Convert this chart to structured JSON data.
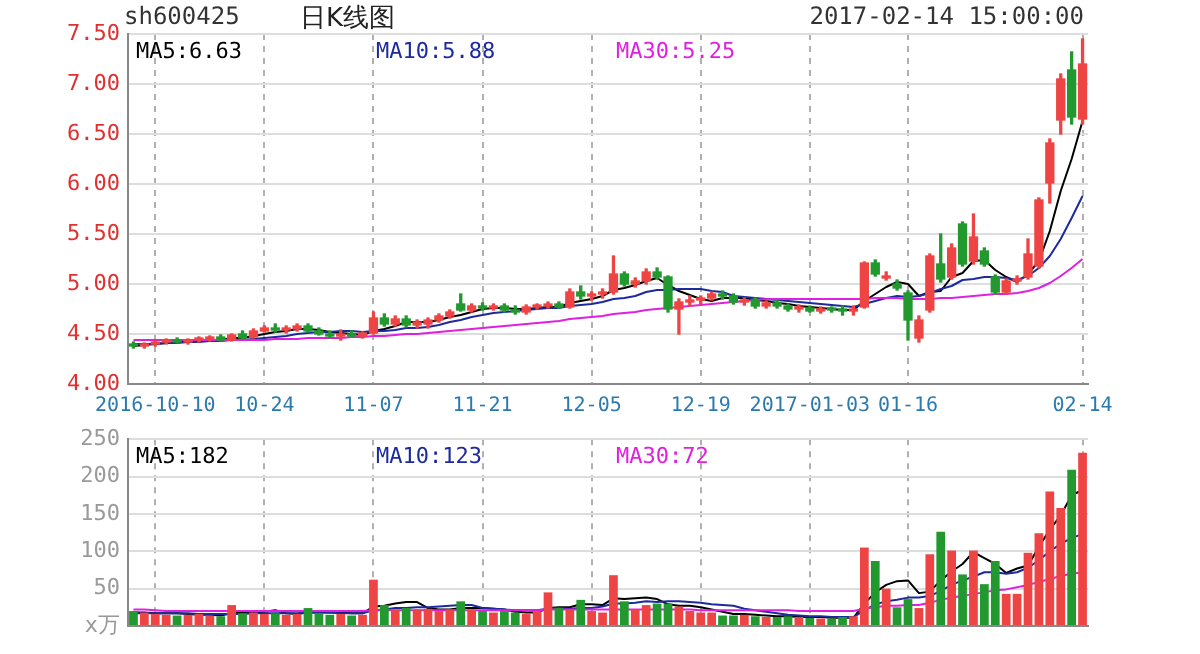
{
  "chart_data": [
    {
      "type": "candlestick",
      "title": "日K线图",
      "annotations": [
        "sh600425",
        "2017-02-14 15:00:00"
      ],
      "categories": [
        null,
        null,
        "2016-10-10",
        null,
        null,
        null,
        null,
        null,
        null,
        null,
        null,
        null,
        "10-24",
        null,
        null,
        null,
        null,
        null,
        null,
        null,
        null,
        null,
        "11-07",
        null,
        null,
        null,
        null,
        null,
        null,
        null,
        null,
        null,
        "11-21",
        null,
        null,
        null,
        null,
        null,
        null,
        null,
        null,
        null,
        "12-05",
        null,
        null,
        null,
        null,
        null,
        null,
        null,
        null,
        null,
        "12-19",
        null,
        null,
        null,
        null,
        null,
        null,
        null,
        null,
        null,
        "2017-01-03",
        null,
        null,
        null,
        null,
        null,
        null,
        null,
        null,
        "01-16",
        null,
        null,
        null,
        null,
        null,
        null,
        null,
        null,
        null,
        null,
        null,
        null,
        null,
        null,
        null,
        "02-14"
      ],
      "ohlc": [
        [
          4.4,
          4.42,
          4.36,
          4.38
        ],
        [
          4.38,
          4.41,
          4.36,
          4.4
        ],
        [
          4.4,
          4.43,
          4.38,
          4.42
        ],
        [
          4.42,
          4.45,
          4.4,
          4.44
        ],
        [
          4.44,
          4.46,
          4.41,
          4.42
        ],
        [
          4.42,
          4.45,
          4.4,
          4.44
        ],
        [
          4.44,
          4.47,
          4.42,
          4.45
        ],
        [
          4.45,
          4.48,
          4.43,
          4.47
        ],
        [
          4.47,
          4.49,
          4.43,
          4.44
        ],
        [
          4.44,
          4.5,
          4.43,
          4.49
        ],
        [
          4.5,
          4.53,
          4.45,
          4.46
        ],
        [
          4.47,
          4.55,
          4.46,
          4.53
        ],
        [
          4.53,
          4.58,
          4.52,
          4.56
        ],
        [
          4.56,
          4.6,
          4.52,
          4.54
        ],
        [
          4.54,
          4.58,
          4.51,
          4.55
        ],
        [
          4.55,
          4.6,
          4.53,
          4.58
        ],
        [
          4.58,
          4.6,
          4.52,
          4.53
        ],
        [
          4.53,
          4.56,
          4.49,
          4.5
        ],
        [
          4.5,
          4.53,
          4.46,
          4.48
        ],
        [
          4.48,
          4.54,
          4.44,
          4.5
        ],
        [
          4.5,
          4.53,
          4.47,
          4.48
        ],
        [
          4.48,
          4.52,
          4.46,
          4.51
        ],
        [
          4.51,
          4.72,
          4.5,
          4.66
        ],
        [
          4.66,
          4.7,
          4.58,
          4.6
        ],
        [
          4.6,
          4.68,
          4.58,
          4.65
        ],
        [
          4.65,
          4.68,
          4.57,
          4.59
        ],
        [
          4.59,
          4.64,
          4.56,
          4.62
        ],
        [
          4.6,
          4.66,
          4.56,
          4.64
        ],
        [
          4.64,
          4.7,
          4.62,
          4.68
        ],
        [
          4.68,
          4.74,
          4.66,
          4.72
        ],
        [
          4.8,
          4.9,
          4.73,
          4.74
        ],
        [
          4.74,
          4.8,
          4.72,
          4.78
        ],
        [
          4.78,
          4.81,
          4.74,
          4.76
        ],
        [
          4.76,
          4.8,
          4.74,
          4.78
        ],
        [
          4.78,
          4.8,
          4.72,
          4.74
        ],
        [
          4.74,
          4.78,
          4.7,
          4.72
        ],
        [
          4.72,
          4.79,
          4.7,
          4.77
        ],
        [
          4.77,
          4.8,
          4.75,
          4.78
        ],
        [
          4.78,
          4.82,
          4.76,
          4.8
        ],
        [
          4.8,
          4.82,
          4.76,
          4.77
        ],
        [
          4.77,
          4.95,
          4.76,
          4.92
        ],
        [
          4.92,
          4.98,
          4.85,
          4.88
        ],
        [
          4.88,
          4.92,
          4.84,
          4.9
        ],
        [
          4.9,
          4.95,
          4.86,
          4.92
        ],
        [
          4.92,
          5.28,
          4.9,
          5.1
        ],
        [
          5.1,
          5.12,
          4.98,
          5.0
        ],
        [
          5.0,
          5.06,
          4.97,
          5.03
        ],
        [
          5.03,
          5.15,
          5.0,
          5.12
        ],
        [
          5.12,
          5.16,
          5.05,
          5.07
        ],
        [
          5.07,
          5.08,
          4.72,
          4.75
        ],
        [
          4.75,
          4.85,
          4.5,
          4.82
        ],
        [
          4.82,
          4.88,
          4.78,
          4.84
        ],
        [
          4.84,
          4.88,
          4.8,
          4.86
        ],
        [
          4.86,
          4.92,
          4.84,
          4.9
        ],
        [
          4.9,
          4.93,
          4.85,
          4.88
        ],
        [
          4.88,
          4.9,
          4.8,
          4.82
        ],
        [
          4.82,
          4.86,
          4.79,
          4.84
        ],
        [
          4.84,
          4.86,
          4.76,
          4.78
        ],
        [
          4.78,
          4.83,
          4.76,
          4.81
        ],
        [
          4.81,
          4.84,
          4.76,
          4.78
        ],
        [
          4.78,
          4.8,
          4.73,
          4.75
        ],
        [
          4.75,
          4.79,
          4.72,
          4.76
        ],
        [
          4.76,
          4.78,
          4.72,
          4.73
        ],
        [
          4.73,
          4.77,
          4.71,
          4.75
        ],
        [
          4.75,
          4.77,
          4.72,
          4.74
        ],
        [
          4.74,
          4.78,
          4.69,
          4.73
        ],
        [
          4.73,
          4.78,
          4.69,
          4.74
        ],
        [
          4.77,
          5.22,
          4.76,
          5.21
        ],
        [
          5.21,
          5.24,
          5.08,
          5.1
        ],
        [
          5.06,
          5.12,
          5.04,
          5.08
        ],
        [
          5.0,
          5.04,
          4.94,
          4.96
        ],
        [
          4.91,
          4.93,
          4.44,
          4.64
        ],
        [
          4.46,
          4.68,
          4.42,
          4.64
        ],
        [
          4.74,
          5.3,
          4.72,
          5.28
        ],
        [
          5.2,
          5.5,
          5.02,
          5.05
        ],
        [
          5.07,
          5.4,
          5.05,
          5.36
        ],
        [
          5.6,
          5.62,
          5.18,
          5.2
        ],
        [
          5.23,
          5.7,
          5.2,
          5.47
        ],
        [
          5.33,
          5.36,
          5.18,
          5.2
        ],
        [
          5.07,
          5.09,
          4.9,
          4.92
        ],
        [
          4.92,
          5.05,
          4.9,
          5.03
        ],
        [
          5.03,
          5.08,
          5.0,
          5.05
        ],
        [
          5.07,
          5.45,
          5.05,
          5.3
        ],
        [
          5.18,
          5.86,
          5.16,
          5.84
        ],
        [
          6.01,
          6.45,
          5.81,
          6.41
        ],
        [
          6.64,
          7.1,
          6.5,
          7.05
        ],
        [
          7.14,
          7.32,
          6.6,
          6.67
        ],
        [
          6.65,
          7.45,
          6.6,
          7.2
        ]
      ],
      "series": [
        {
          "type": "line",
          "name": "MA5:6.63",
          "color": "#000000",
          "values": [
            4.38,
            4.39,
            4.4,
            4.41,
            4.42,
            4.42,
            4.43,
            4.44,
            4.44,
            4.46,
            4.46,
            4.48,
            4.5,
            4.52,
            4.53,
            4.55,
            4.55,
            4.54,
            4.52,
            4.51,
            4.5,
            4.49,
            4.53,
            4.55,
            4.58,
            4.62,
            4.62,
            4.62,
            4.64,
            4.67,
            4.69,
            4.72,
            4.75,
            4.76,
            4.76,
            4.75,
            4.75,
            4.76,
            4.77,
            4.77,
            4.81,
            4.83,
            4.85,
            4.88,
            4.94,
            4.96,
            4.99,
            5.03,
            5.06,
            4.99,
            4.93,
            4.89,
            4.85,
            4.83,
            4.86,
            4.86,
            4.86,
            4.84,
            4.83,
            4.81,
            4.8,
            4.78,
            4.77,
            4.76,
            4.75,
            4.74,
            4.74,
            4.83,
            4.9,
            4.97,
            5.02,
            5.0,
            4.88,
            4.92,
            4.93,
            5.07,
            5.11,
            5.23,
            5.24,
            5.14,
            5.07,
            5.02,
            5.1,
            5.23,
            5.53,
            5.93,
            6.25,
            6.63
          ]
        },
        {
          "type": "line",
          "name": "MA10:5.88",
          "color": "#1c2a9c",
          "values": [
            4.4,
            4.4,
            4.4,
            4.41,
            4.41,
            4.42,
            4.42,
            4.43,
            4.43,
            4.44,
            4.44,
            4.45,
            4.46,
            4.47,
            4.48,
            4.5,
            4.51,
            4.52,
            4.52,
            4.53,
            4.53,
            4.52,
            4.53,
            4.53,
            4.54,
            4.56,
            4.56,
            4.57,
            4.59,
            4.62,
            4.64,
            4.67,
            4.69,
            4.71,
            4.72,
            4.73,
            4.74,
            4.75,
            4.76,
            4.76,
            4.78,
            4.79,
            4.8,
            4.82,
            4.85,
            4.86,
            4.88,
            4.92,
            4.94,
            4.94,
            4.95,
            4.95,
            4.95,
            4.93,
            4.92,
            4.88,
            4.87,
            4.86,
            4.85,
            4.84,
            4.83,
            4.82,
            4.81,
            4.8,
            4.79,
            4.78,
            4.77,
            4.8,
            4.83,
            4.86,
            4.88,
            4.87,
            4.88,
            4.91,
            4.95,
            4.98,
            5.04,
            5.05,
            5.07,
            5.07,
            5.06,
            5.04,
            5.08,
            5.16,
            5.28,
            5.45,
            5.66,
            5.88
          ]
        },
        {
          "type": "line",
          "name": "MA30:5.25",
          "color": "#e020e0",
          "values": [
            4.44,
            4.44,
            4.44,
            4.44,
            4.44,
            4.44,
            4.44,
            4.44,
            4.44,
            4.44,
            4.44,
            4.44,
            4.44,
            4.45,
            4.45,
            4.45,
            4.46,
            4.46,
            4.46,
            4.46,
            4.47,
            4.47,
            4.48,
            4.48,
            4.49,
            4.5,
            4.5,
            4.51,
            4.52,
            4.53,
            4.54,
            4.55,
            4.56,
            4.57,
            4.58,
            4.59,
            4.6,
            4.61,
            4.62,
            4.63,
            4.65,
            4.66,
            4.67,
            4.68,
            4.7,
            4.71,
            4.72,
            4.74,
            4.75,
            4.76,
            4.77,
            4.78,
            4.79,
            4.8,
            4.81,
            4.82,
            4.83,
            4.84,
            4.85,
            4.85,
            4.85,
            4.85,
            4.85,
            4.85,
            4.85,
            4.85,
            4.85,
            4.85,
            4.86,
            4.86,
            4.86,
            4.85,
            4.85,
            4.85,
            4.86,
            4.86,
            4.87,
            4.88,
            4.89,
            4.9,
            4.9,
            4.91,
            4.93,
            4.96,
            5.01,
            5.08,
            5.16,
            5.25
          ]
        }
      ],
      "ylim": [
        4,
        7.5
      ],
      "yticks": [
        {
          "value": 4,
          "label": "4.00"
        },
        {
          "value": 4.5,
          "label": "4.50"
        },
        {
          "value": 5,
          "label": "5.00"
        },
        {
          "value": 5.5,
          "label": "5.50"
        },
        {
          "value": 6,
          "label": "6.00"
        },
        {
          "value": 6.5,
          "label": "6.50"
        },
        {
          "value": 7,
          "label": "7.00"
        },
        {
          "value": 7.5,
          "label": "7.50"
        }
      ],
      "grid": true,
      "legend": "top left"
    },
    {
      "type": "bar",
      "tick_labels": "y",
      "categories": [
        null,
        null,
        null,
        null,
        null,
        null,
        null,
        null,
        null,
        null,
        null,
        null,
        null,
        null,
        null,
        null,
        null,
        null,
        null,
        null,
        null,
        null,
        null,
        null,
        null,
        null,
        null,
        null,
        null,
        null,
        null,
        null,
        null,
        null,
        null,
        null,
        null,
        null,
        null,
        null,
        null,
        null,
        null,
        null,
        null,
        null,
        null,
        null,
        null,
        null,
        null,
        null,
        null,
        null,
        null,
        null,
        null,
        null,
        null,
        null,
        null,
        null,
        null,
        null,
        null,
        null,
        null,
        null,
        null,
        null,
        null,
        null,
        null,
        null,
        null,
        null,
        null,
        null,
        null,
        null,
        null,
        null,
        null,
        null,
        null,
        null,
        null,
        null
      ],
      "series": [
        {
          "type": "bar",
          "values": [
            20,
            18,
            16,
            15,
            14,
            15,
            16,
            14,
            13,
            28,
            17,
            18,
            16,
            17,
            15,
            16,
            24,
            17,
            15,
            16,
            14,
            15,
            62,
            28,
            22,
            24,
            22,
            23,
            20,
            22,
            33,
            22,
            20,
            18,
            20,
            18,
            16,
            20,
            45,
            24,
            22,
            35,
            20,
            18,
            68,
            33,
            22,
            28,
            30,
            30,
            26,
            20,
            18,
            18,
            14,
            14,
            15,
            13,
            12,
            12,
            13,
            12,
            11,
            10,
            10,
            12,
            13,
            105,
            87,
            50,
            25,
            36,
            24,
            96,
            126,
            101,
            69,
            101,
            56,
            87,
            43,
            43,
            98,
            124,
            180,
            158,
            209,
            232
          ],
          "colors": [
            "#22992e",
            "#ee4444",
            "#ee4444",
            "#ee4444",
            "#22992e",
            "#ee4444",
            "#ee4444",
            "#ee4444",
            "#22992e",
            "#ee4444",
            "#22992e",
            "#ee4444",
            "#ee4444",
            "#22992e",
            "#ee4444",
            "#ee4444",
            "#22992e",
            "#22992e",
            "#22992e",
            "#ee4444",
            "#22992e",
            "#ee4444",
            "#ee4444",
            "#22992e",
            "#ee4444",
            "#22992e",
            "#ee4444",
            "#ee4444",
            "#ee4444",
            "#ee4444",
            "#22992e",
            "#ee4444",
            "#22992e",
            "#ee4444",
            "#22992e",
            "#22992e",
            "#ee4444",
            "#ee4444",
            "#ee4444",
            "#22992e",
            "#ee4444",
            "#22992e",
            "#ee4444",
            "#ee4444",
            "#ee4444",
            "#22992e",
            "#ee4444",
            "#ee4444",
            "#22992e",
            "#22992e",
            "#ee4444",
            "#ee4444",
            "#ee4444",
            "#ee4444",
            "#22992e",
            "#22992e",
            "#ee4444",
            "#22992e",
            "#ee4444",
            "#22992e",
            "#22992e",
            "#ee4444",
            "#22992e",
            "#ee4444",
            "#22992e",
            "#22992e",
            "#ee4444",
            "#ee4444",
            "#22992e",
            "#ee4444",
            "#22992e",
            "#22992e",
            "#ee4444",
            "#ee4444",
            "#22992e",
            "#ee4444",
            "#22992e",
            "#ee4444",
            "#22992e",
            "#22992e",
            "#ee4444",
            "#ee4444",
            "#ee4444",
            "#ee4444",
            "#ee4444",
            "#ee4444",
            "#22992e",
            "#ee4444"
          ]
        },
        {
          "type": "line",
          "name": "MA5:182",
          "color": "#000000",
          "values": [
            18,
            18,
            17,
            17,
            17,
            16,
            15,
            15,
            14,
            17,
            18,
            18,
            19,
            21,
            17,
            16,
            18,
            18,
            18,
            18,
            17,
            17,
            26,
            27,
            30,
            32,
            32,
            24,
            22,
            22,
            24,
            24,
            24,
            23,
            22,
            19,
            18,
            18,
            24,
            25,
            25,
            29,
            29,
            28,
            37,
            36,
            37,
            38,
            36,
            29,
            27,
            27,
            25,
            22,
            19,
            16,
            16,
            15,
            14,
            13,
            13,
            12,
            12,
            12,
            11,
            11,
            11,
            30,
            45,
            55,
            60,
            61,
            44,
            46,
            61,
            73,
            83,
            99,
            91,
            83,
            71,
            77,
            81,
            106,
            129,
            148,
            175,
            182
          ]
        },
        {
          "type": "line",
          "name": "MA10:123",
          "color": "#1c2a9c",
          "values": [
            17,
            17,
            17,
            17,
            17,
            17,
            16,
            16,
            16,
            16,
            16,
            17,
            17,
            17,
            17,
            17,
            18,
            18,
            18,
            17,
            17,
            17,
            21,
            22,
            24,
            24,
            25,
            25,
            26,
            27,
            28,
            28,
            24,
            23,
            22,
            21,
            21,
            21,
            23,
            24,
            23,
            24,
            24,
            26,
            30,
            30,
            31,
            33,
            32,
            33,
            33,
            32,
            31,
            29,
            28,
            27,
            23,
            21,
            19,
            17,
            15,
            14,
            13,
            13,
            12,
            12,
            12,
            21,
            29,
            33,
            35,
            38,
            38,
            40,
            47,
            55,
            61,
            66,
            72,
            72,
            70,
            72,
            78,
            88,
            100,
            110,
            118,
            123
          ]
        },
        {
          "type": "line",
          "name": "MA30:72",
          "color": "#e020e0",
          "values": [
            22,
            22,
            21,
            20,
            20,
            20,
            20,
            20,
            20,
            20,
            20,
            20,
            20,
            20,
            20,
            20,
            20,
            20,
            20,
            20,
            20,
            20,
            21,
            21,
            21,
            21,
            21,
            21,
            21,
            21,
            21,
            21,
            21,
            21,
            21,
            21,
            21,
            21,
            22,
            22,
            22,
            22,
            22,
            22,
            22,
            22,
            22,
            22,
            22,
            22,
            22,
            22,
            21,
            21,
            21,
            21,
            21,
            21,
            21,
            21,
            21,
            20,
            20,
            20,
            20,
            20,
            20,
            23,
            25,
            27,
            27,
            28,
            28,
            31,
            35,
            38,
            40,
            43,
            45,
            48,
            49,
            52,
            55,
            59,
            63,
            67,
            70,
            72
          ]
        }
      ],
      "ylim": [
        0,
        250
      ],
      "yticks": [
        {
          "value": 0,
          "label": "x万"
        },
        50,
        100,
        150,
        200,
        250
      ],
      "grid": true,
      "legend": "top left"
    }
  ]
}
